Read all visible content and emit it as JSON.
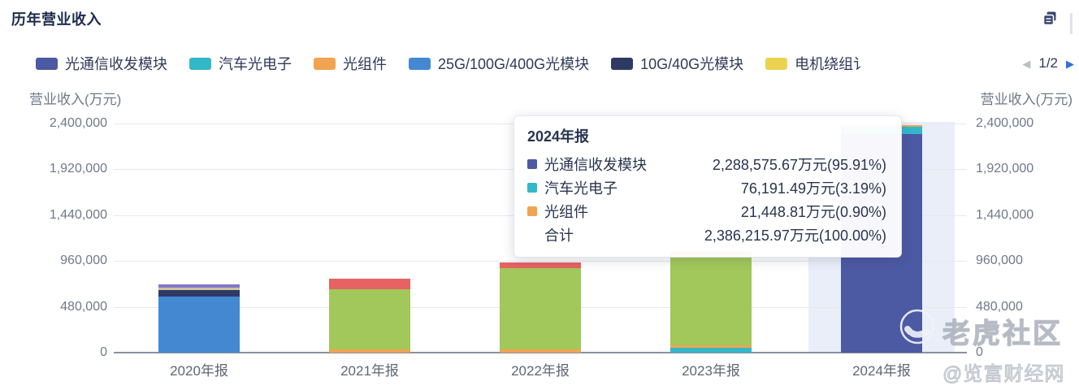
{
  "header": {
    "title": "历年营业收入"
  },
  "legend": {
    "items": [
      {
        "label": "光通信收发模块",
        "color": "#4c59a3"
      },
      {
        "label": "汽车光电子",
        "color": "#33b8c9"
      },
      {
        "label": "光组件",
        "color": "#f0a452"
      },
      {
        "label": "25G/100G/400G光模块",
        "color": "#4488d2"
      },
      {
        "label": "10G/40G光模块",
        "color": "#2d3a66"
      },
      {
        "label": "电机绕组讠",
        "color": "#ecd34f"
      }
    ],
    "page_indicator": "1/2",
    "prev_arrow": "◀",
    "next_arrow": "▶"
  },
  "axes": {
    "left_title": "营业收入(万元)",
    "right_title": "营业收入(万元)",
    "ticks": [
      {
        "value": 2400000,
        "label": "2,400,000"
      },
      {
        "value": 1920000,
        "label": "1,920,000"
      },
      {
        "value": 1440000,
        "label": "1,440,000"
      },
      {
        "value": 960000,
        "label": "960,000"
      },
      {
        "value": 480000,
        "label": "480,000"
      },
      {
        "value": 0,
        "label": "0"
      }
    ]
  },
  "chart_data": {
    "type": "bar",
    "stacked": true,
    "title": "历年营业收入",
    "ylabel": "营业收入(万元)",
    "ylim": [
      0,
      2400000
    ],
    "unit": "万元",
    "categories": [
      "2020年报",
      "2021年报",
      "2022年报",
      "2023年报",
      "2024年报"
    ],
    "highlighted_category": "2024年报",
    "bars": [
      {
        "category": "2020年报",
        "segments": [
          {
            "name": "25G/100G/400G光模块",
            "color": "#4488d2",
            "value": 585000
          },
          {
            "name": "10G/40G光模块",
            "color": "#2d3a66",
            "value": 70000
          },
          {
            "name": "未标注(米色)",
            "color": "#cfc39b",
            "value": 27000
          },
          {
            "name": "未标注(紫色)",
            "color": "#8377cd",
            "value": 31000
          }
        ]
      },
      {
        "category": "2021年报",
        "segments": [
          {
            "name": "光组件",
            "color": "#f0a452",
            "value": 33000
          },
          {
            "name": "未标注(绿色)",
            "color": "#a2c75a",
            "value": 635000
          },
          {
            "name": "未标注(红色)",
            "color": "#e66263",
            "value": 103000
          }
        ]
      },
      {
        "category": "2022年报",
        "segments": [
          {
            "name": "光组件",
            "color": "#f0a452",
            "value": 32000
          },
          {
            "name": "未标注(绿色)",
            "color": "#a2c75a",
            "value": 852000
          },
          {
            "name": "未标注(红色)",
            "color": "#e66263",
            "value": 60000
          }
        ]
      },
      {
        "category": "2023年报",
        "segments": [
          {
            "name": "汽车光电子",
            "color": "#33b8c9",
            "value": 50000
          },
          {
            "name": "光组件",
            "color": "#f0a452",
            "value": 27000
          },
          {
            "name": "未标注(绿色)",
            "color": "#a2c75a",
            "value": 941000
          },
          {
            "name": "未标注(红色)",
            "color": "#e66263",
            "value": 36000
          }
        ]
      },
      {
        "category": "2024年报",
        "segments": [
          {
            "name": "光通信收发模块",
            "color": "#4c59a3",
            "value": 2288575.67
          },
          {
            "name": "汽车光电子",
            "color": "#33b8c9",
            "value": 76191.49
          },
          {
            "name": "光组件",
            "color": "#f0a452",
            "value": 21448.81
          }
        ]
      }
    ]
  },
  "tooltip": {
    "title": "2024年报",
    "rows": [
      {
        "name": "光通信收发模块",
        "color": "#4c59a3",
        "value": "2,288,575.67万元(95.91%)"
      },
      {
        "name": "汽车光电子",
        "color": "#33b8c9",
        "value": "76,191.49万元(3.19%)"
      },
      {
        "name": "光组件",
        "color": "#f0a452",
        "value": "21,448.81万元(0.90%)"
      },
      {
        "name": "合计",
        "color": "",
        "value": "2,386,215.97万元(100.00%)"
      }
    ]
  },
  "watermark": {
    "brand": "老虎社区",
    "source": "@览富财经网"
  }
}
